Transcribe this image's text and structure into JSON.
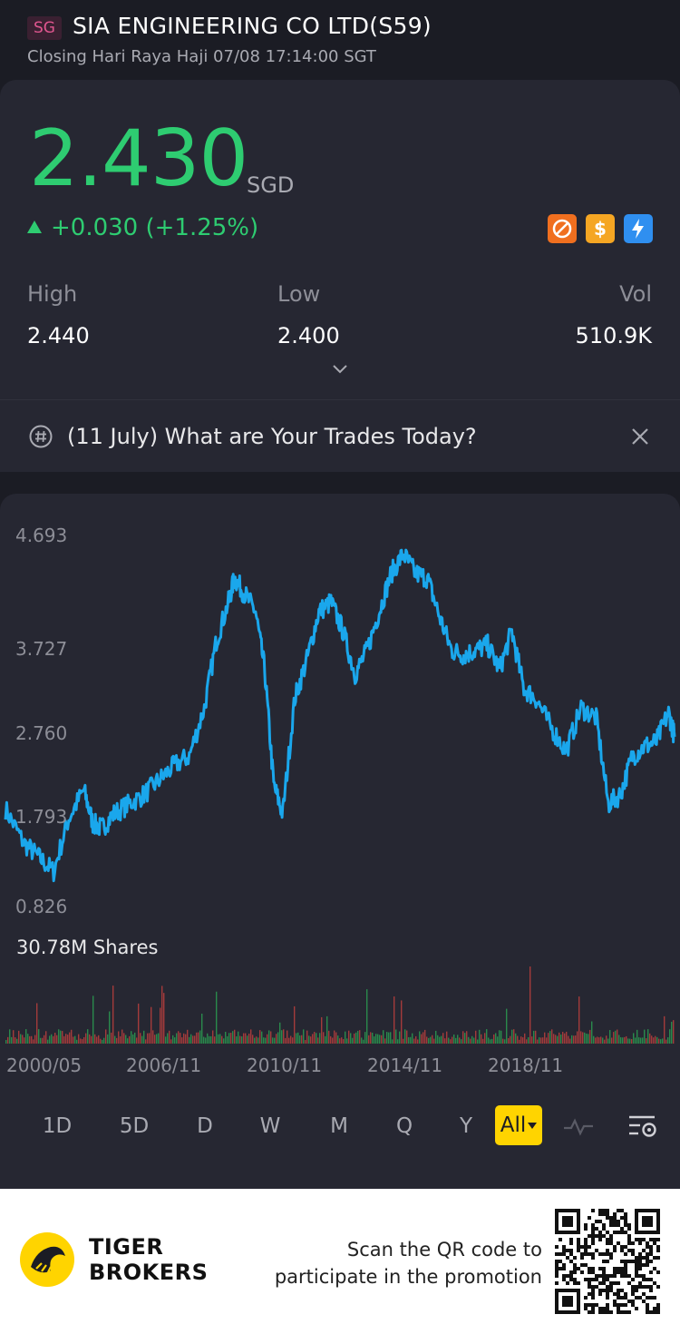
{
  "header": {
    "market_badge": "SG",
    "title": "SIA ENGINEERING CO LTD(S59)",
    "status": "Closing Hari Raya Haji 07/08 17:14:00 SGT"
  },
  "quote": {
    "price": "2.430",
    "currency": "SGD",
    "change": "+0.030 (+1.25%)",
    "badges": [
      {
        "icon": "no-short-icon",
        "color": "#f06f1f"
      },
      {
        "icon": "dollar-icon",
        "color": "#f5a623"
      },
      {
        "icon": "flash-icon",
        "color": "#2f8ff0"
      }
    ],
    "stats": {
      "high_label": "High",
      "high_value": "2.440",
      "low_label": "Low",
      "low_value": "2.400",
      "vol_label": "Vol",
      "vol_value": "510.9K"
    }
  },
  "news": {
    "text": "(11 July) What are Your Trades Today?"
  },
  "chart_data": {
    "type": "line",
    "y_ticks": [
      "4.693",
      "3.727",
      "2.760",
      "1.793",
      "0.826"
    ],
    "ylim": [
      0.826,
      4.693
    ],
    "x_ticks": [
      "2000/05",
      "2006/11",
      "2010/11",
      "2014/11",
      "2018/11"
    ],
    "volume_label": "30.78M Shares",
    "line_color": "#1aa7ec",
    "series": [
      {
        "x": [
          2000.4,
          2001.0,
          2001.5,
          2002.0,
          2002.5,
          2003.0,
          2003.3,
          2003.6,
          2004.0,
          2004.5,
          2005.0,
          2005.5,
          2006.0,
          2006.5,
          2007.0,
          2007.4,
          2007.8,
          2008.0,
          2008.3,
          2008.7,
          2009.0,
          2009.3,
          2009.6,
          2010.0,
          2010.4,
          2010.8,
          2011.2,
          2011.6,
          2012.0,
          2012.4,
          2012.8,
          2013.2,
          2013.6,
          2014.0,
          2014.4,
          2014.8,
          2015.2,
          2015.6,
          2016.0,
          2016.4,
          2016.8,
          2017.2,
          2017.6,
          2018.0,
          2018.5,
          2019.0,
          2019.5,
          2020.0,
          2020.4,
          2020.8,
          2021.2,
          2021.6,
          2022.0,
          2022.4,
          2022.6
        ],
        "y": [
          1.85,
          1.5,
          1.35,
          1.2,
          1.75,
          2.05,
          1.7,
          1.65,
          1.8,
          1.9,
          2.0,
          2.15,
          2.3,
          2.4,
          2.9,
          3.6,
          4.0,
          4.25,
          4.1,
          3.9,
          3.3,
          2.1,
          1.8,
          3.0,
          3.4,
          3.9,
          4.0,
          3.7,
          3.25,
          3.5,
          3.9,
          4.3,
          4.5,
          4.3,
          4.25,
          3.85,
          3.5,
          3.45,
          3.5,
          3.55,
          3.3,
          3.7,
          3.1,
          3.0,
          2.7,
          2.45,
          2.9,
          2.8,
          1.9,
          2.0,
          2.4,
          2.5,
          2.55,
          2.85,
          2.6
        ]
      }
    ]
  },
  "periods": [
    "1D",
    "5D",
    "D",
    "W",
    "M",
    "Q",
    "Y",
    "All"
  ],
  "footer": {
    "brand_line1": "TIGER",
    "brand_line2": "BROKERS",
    "promo_line1": "Scan the QR code to",
    "promo_line2": "participate in the promotion"
  }
}
